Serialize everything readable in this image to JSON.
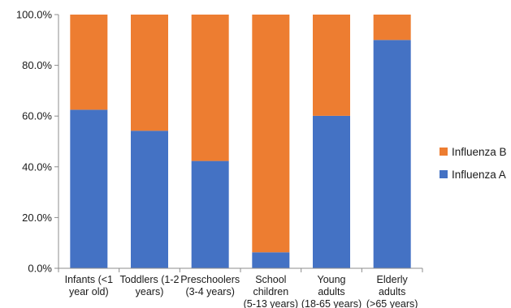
{
  "chart_data": {
    "type": "bar",
    "stacked": true,
    "percent_stacked": true,
    "categories": [
      [
        "Infants (<1",
        "year old)"
      ],
      [
        "Toddlers (1-2",
        "years)"
      ],
      [
        "Preschoolers",
        "(3-4 years)"
      ],
      [
        "School",
        "children",
        "(5-13 years)"
      ],
      [
        "Young",
        "adults",
        "(18-65 years)"
      ],
      [
        "Elderly",
        "adults",
        "(>65 years)"
      ]
    ],
    "series": [
      {
        "name": "Influenza A",
        "color": "#4472C4",
        "values": [
          62.5,
          54.2,
          42.3,
          6.3,
          60.1,
          90.0
        ]
      },
      {
        "name": "Influenza B",
        "color": "#ED7D31",
        "values": [
          37.5,
          45.8,
          57.7,
          93.7,
          39.9,
          10.0
        ]
      }
    ],
    "y_ticks": [
      "0.0%",
      "20.0%",
      "40.0%",
      "60.0%",
      "80.0%",
      "100.0%"
    ],
    "ylim": [
      0,
      100
    ],
    "legend_position": "right",
    "legend_order": [
      "Influenza B",
      "Influenza A"
    ],
    "grid": false
  }
}
